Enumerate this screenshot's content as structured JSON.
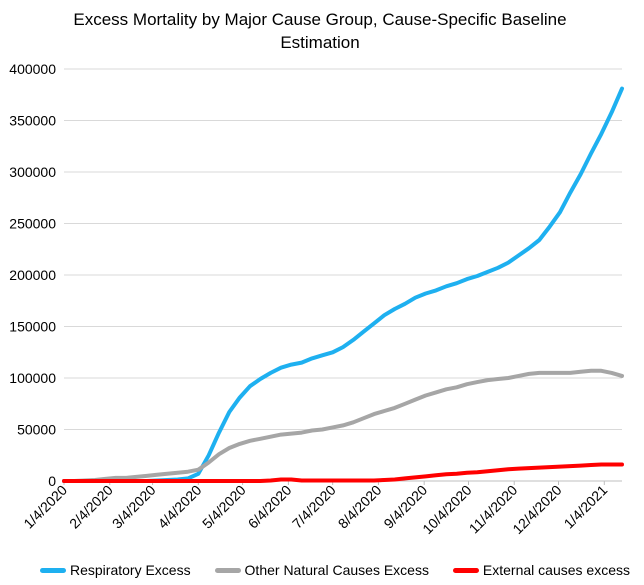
{
  "chart_data": {
    "type": "line",
    "title": "Excess Mortality by Major Cause Group, Cause-Specific Baseline Estimation",
    "xlabel": "",
    "ylabel": "",
    "ylim": [
      0,
      400000
    ],
    "yticks": [
      "0",
      "50000",
      "100000",
      "150000",
      "200000",
      "250000",
      "300000",
      "350000",
      "400000"
    ],
    "xticks": [
      "1/4/2020",
      "2/4/2020",
      "3/4/2020",
      "4/4/2020",
      "5/4/2020",
      "6/4/2020",
      "7/4/2020",
      "8/4/2020",
      "9/4/2020",
      "10/4/2020",
      "11/4/2020",
      "12/4/2020",
      "1/4/2021"
    ],
    "grid": "horizontal",
    "legend_position": "bottom",
    "x": [
      "2020-01-04",
      "2020-01-11",
      "2020-01-18",
      "2020-01-25",
      "2020-02-01",
      "2020-02-08",
      "2020-02-15",
      "2020-02-22",
      "2020-02-29",
      "2020-03-07",
      "2020-03-14",
      "2020-03-21",
      "2020-03-28",
      "2020-04-04",
      "2020-04-11",
      "2020-04-18",
      "2020-04-25",
      "2020-05-02",
      "2020-05-09",
      "2020-05-16",
      "2020-05-23",
      "2020-05-30",
      "2020-06-06",
      "2020-06-13",
      "2020-06-20",
      "2020-06-27",
      "2020-07-04",
      "2020-07-11",
      "2020-07-18",
      "2020-07-25",
      "2020-08-01",
      "2020-08-08",
      "2020-08-15",
      "2020-08-22",
      "2020-08-29",
      "2020-09-05",
      "2020-09-12",
      "2020-09-19",
      "2020-09-26",
      "2020-10-03",
      "2020-10-10",
      "2020-10-17",
      "2020-10-24",
      "2020-10-31",
      "2020-11-07",
      "2020-11-14",
      "2020-11-21",
      "2020-11-28",
      "2020-12-05",
      "2020-12-12",
      "2020-12-19",
      "2020-12-26",
      "2021-01-02",
      "2021-01-09",
      "2021-01-16"
    ],
    "series": [
      {
        "name": "Respiratory Excess",
        "color": "#1eb0f0",
        "values": [
          0,
          0,
          0,
          0,
          0,
          0,
          0,
          0,
          0,
          500,
          1000,
          1500,
          2500,
          7000,
          25000,
          47000,
          67000,
          81000,
          92000,
          99000,
          105000,
          110000,
          113000,
          115000,
          119000,
          122000,
          125000,
          130000,
          137000,
          145000,
          153000,
          161000,
          167000,
          172000,
          178000,
          182000,
          185000,
          189000,
          192000,
          196000,
          199000,
          203000,
          207000,
          212000,
          219000,
          226000,
          234000,
          247000,
          261000,
          280000,
          298000,
          318000,
          337000,
          358000,
          381000
        ]
      },
      {
        "name": "Other Natural Causes Excess",
        "color": "#a6a6a6",
        "values": [
          0,
          0,
          500,
          1000,
          2000,
          3000,
          3000,
          4000,
          5000,
          6000,
          7000,
          8000,
          9000,
          11000,
          18000,
          26000,
          32000,
          36000,
          39000,
          41000,
          43000,
          45000,
          46000,
          47000,
          49000,
          50000,
          52000,
          54000,
          57000,
          61000,
          65000,
          68000,
          71000,
          75000,
          79000,
          83000,
          86000,
          89000,
          91000,
          94000,
          96000,
          98000,
          99000,
          100000,
          102000,
          104000,
          105000,
          105000,
          105000,
          105000,
          106000,
          107000,
          107000,
          105000,
          102000
        ]
      },
      {
        "name": "External causes excess",
        "color": "#ff0000",
        "values": [
          0,
          0,
          0,
          0,
          0,
          0,
          0,
          0,
          0,
          0,
          0,
          0,
          0,
          0,
          0,
          0,
          0,
          0,
          0,
          0,
          500,
          1500,
          1500,
          500,
          500,
          500,
          500,
          500,
          500,
          500,
          500,
          1000,
          1500,
          2500,
          3500,
          4500,
          5500,
          6500,
          7000,
          8000,
          8500,
          9500,
          10500,
          11500,
          12000,
          12500,
          13000,
          13500,
          14000,
          14500,
          15000,
          15500,
          16000,
          16000,
          16000
        ]
      }
    ]
  }
}
